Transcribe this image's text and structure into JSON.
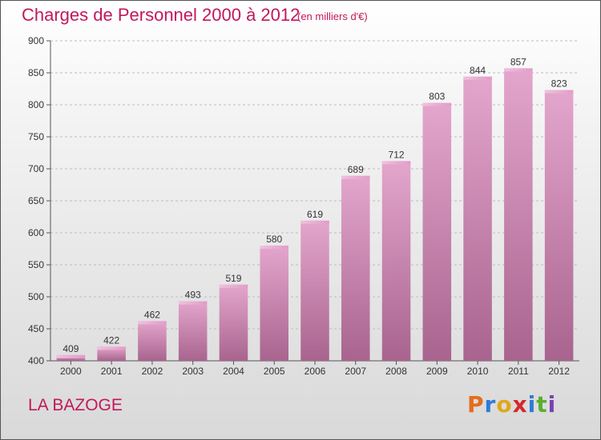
{
  "chart_data": {
    "type": "bar",
    "title": "Charges de Personnel 2000 à 2012",
    "subtitle": "(en milliers d'€)",
    "categories": [
      "2000",
      "2001",
      "2002",
      "2003",
      "2004",
      "2005",
      "2006",
      "2007",
      "2008",
      "2009",
      "2010",
      "2011",
      "2012"
    ],
    "values": [
      409,
      422,
      462,
      493,
      519,
      580,
      619,
      689,
      712,
      803,
      844,
      857,
      823
    ],
    "ylim": [
      400,
      900
    ],
    "yticks": [
      400,
      450,
      500,
      550,
      600,
      650,
      700,
      750,
      800,
      850,
      900
    ],
    "grid": true,
    "bar_color": "#c97faa"
  },
  "footer": {
    "place": "LA BAZOGE",
    "logo": "Proxiti"
  }
}
